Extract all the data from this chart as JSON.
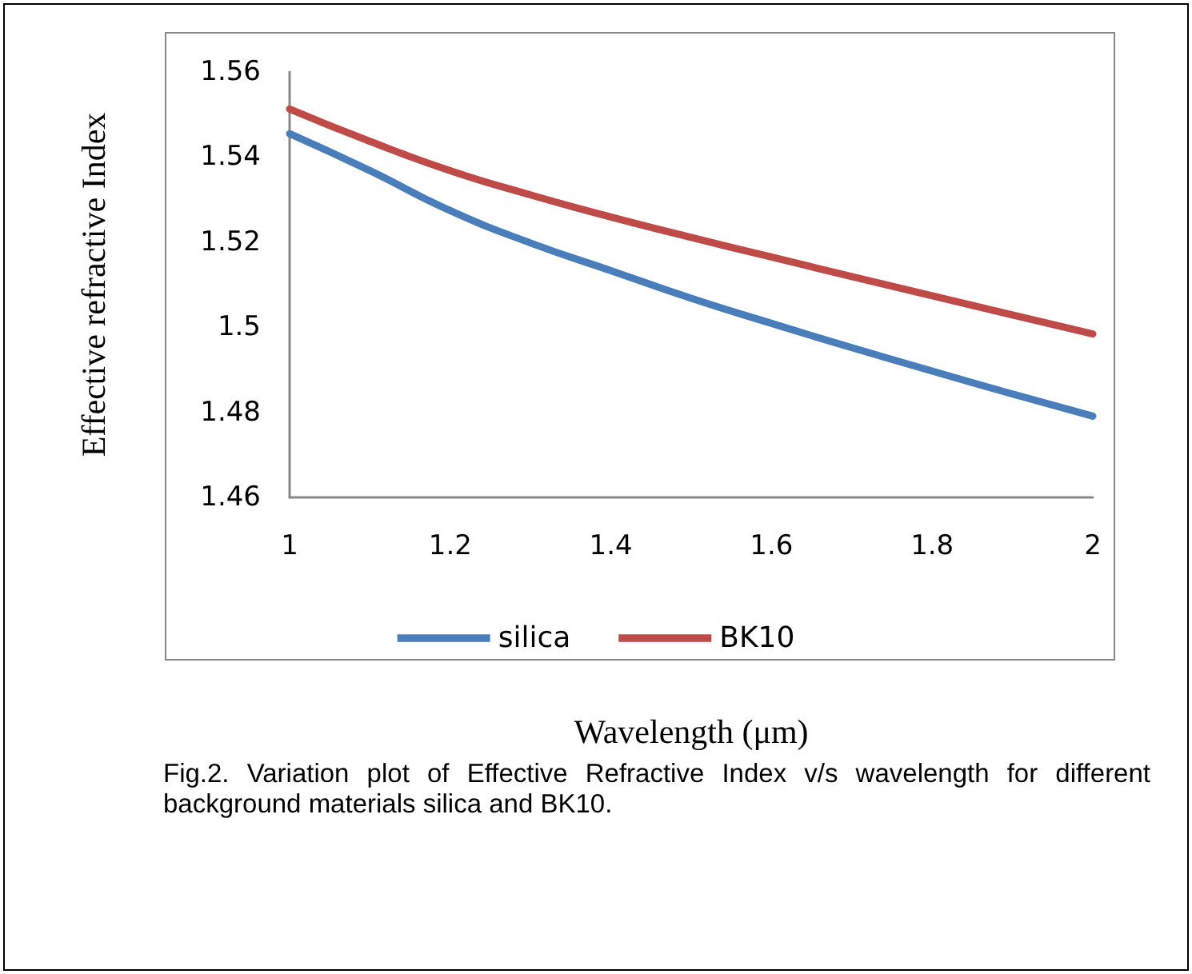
{
  "chart_data": {
    "type": "line",
    "xlabel": "Wavelength (μm)",
    "ylabel": "Effective refractive Index",
    "x": [
      1,
      1.1,
      1.2,
      1.3,
      1.4,
      1.5,
      1.6,
      1.7,
      1.8,
      1.9,
      2
    ],
    "series": [
      {
        "name": "silica",
        "color": "#4a7ebb",
        "values": [
          1.5455,
          1.5368,
          1.5274,
          1.5198,
          1.5133,
          1.5068,
          1.5009,
          1.4952,
          1.4897,
          1.4843,
          1.4791
        ]
      },
      {
        "name": "BK10",
        "color": "#be4b48",
        "values": [
          1.5513,
          1.5437,
          1.5368,
          1.5311,
          1.5259,
          1.5211,
          1.5165,
          1.5119,
          1.5074,
          1.5029,
          1.4984
        ]
      }
    ],
    "xlim": [
      1,
      2
    ],
    "xticks": [
      1,
      1.2,
      1.4,
      1.6,
      1.8,
      2
    ],
    "ylim": [
      1.46,
      1.56
    ],
    "yticks": [
      1.46,
      1.48,
      1.5,
      1.52,
      1.54,
      1.56
    ],
    "grid": false,
    "legend": "bottom",
    "marker": "none",
    "line_style": "solid",
    "annotations": [
      "Fig.2. Variation plot of Effective Refractive Index v/s wavelength for different background materials silica and BK10."
    ]
  }
}
